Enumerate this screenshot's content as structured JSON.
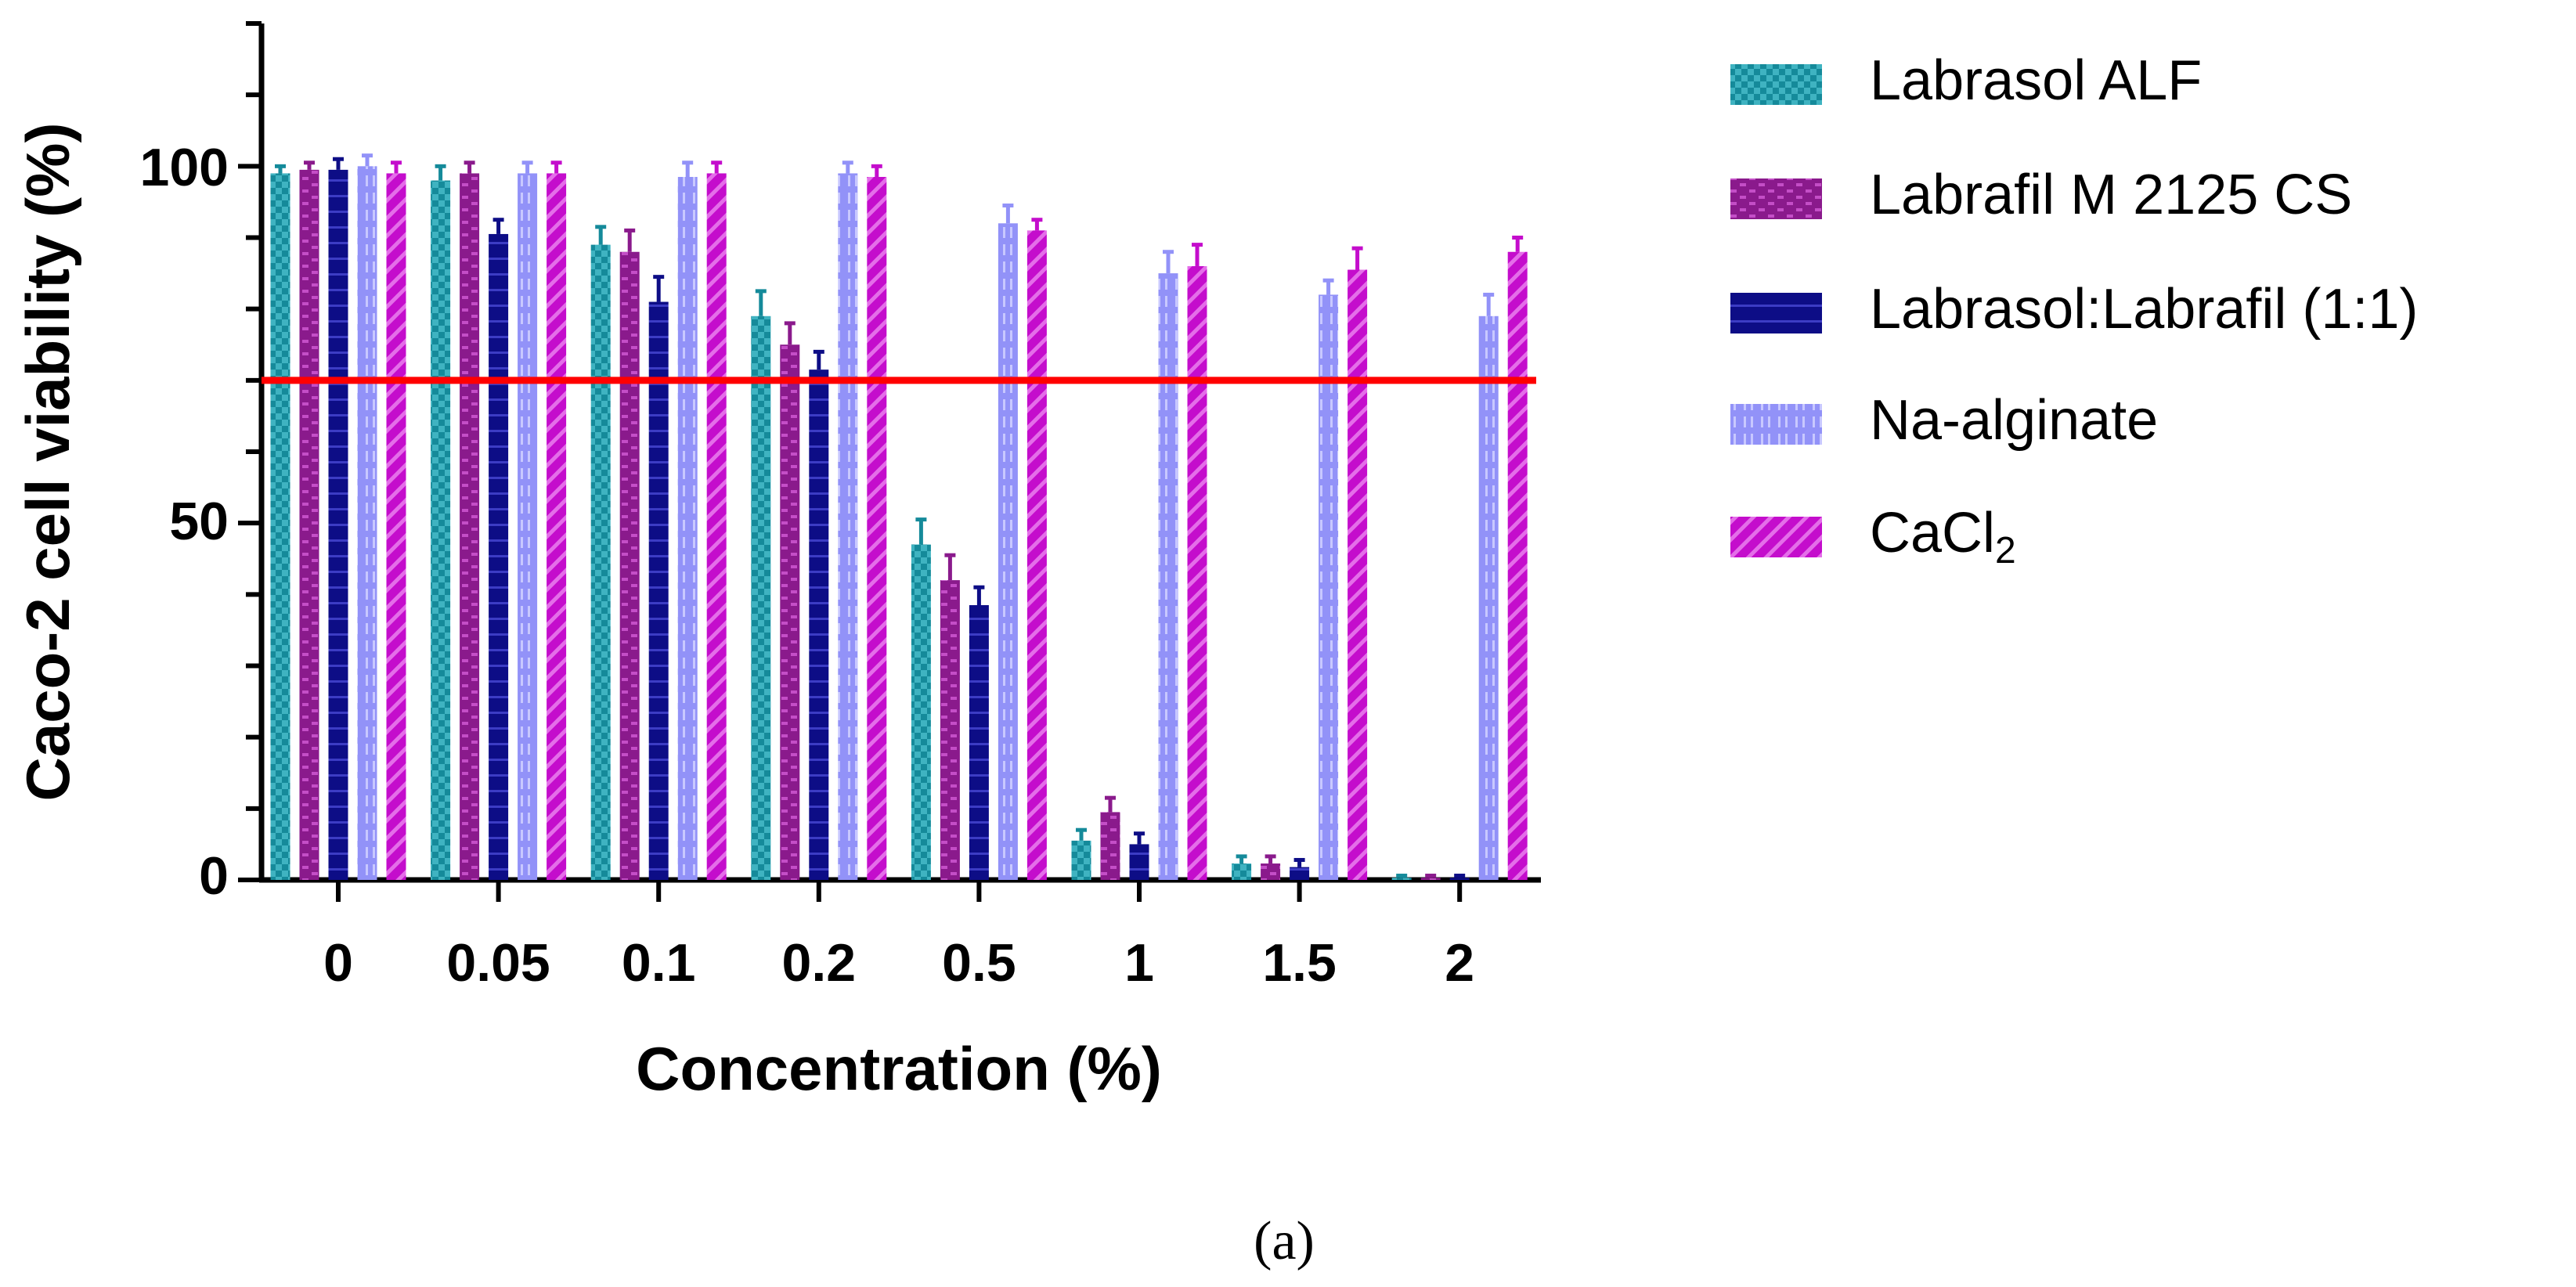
{
  "chart_data": {
    "type": "bar",
    "title": "",
    "xlabel": "Concentration (%)",
    "ylabel": "Caco-2 cell viability (%)",
    "ylim": [
      0,
      120
    ],
    "yticks": [
      0,
      50,
      100
    ],
    "categories": [
      "0",
      "0.05",
      "0.1",
      "0.2",
      "0.5",
      "1",
      "1.5",
      "2"
    ],
    "series": [
      {
        "name": "Labrasol ALF",
        "color": "#158a9a",
        "values": [
          99,
          98,
          89,
          79,
          47,
          5.5,
          2.3,
          0.3
        ],
        "errors": [
          1,
          2,
          2.5,
          3.5,
          3.5,
          1.5,
          1,
          0.3
        ]
      },
      {
        "name": "Labrafil M 2125 CS",
        "color": "#8a1a8c",
        "values": [
          99.5,
          99,
          88,
          75,
          42,
          9.5,
          2.3,
          0.3
        ],
        "errors": [
          1,
          1.5,
          3,
          3,
          3.5,
          2,
          1,
          0.3
        ]
      },
      {
        "name": "Labrasol:Labrafil (1:1)",
        "color": "#0d0d86",
        "values": [
          99.5,
          90.5,
          81,
          71.5,
          38.5,
          5,
          1.8,
          0.3
        ],
        "errors": [
          1.5,
          2,
          3.5,
          2.5,
          2.5,
          1.5,
          1,
          0.3
        ]
      },
      {
        "name": "Na-alginate",
        "color": "#9292f8",
        "values": [
          100,
          99,
          98.5,
          99,
          92,
          85,
          82,
          79
        ],
        "errors": [
          1.5,
          1.5,
          2,
          1.5,
          2.5,
          3,
          2,
          3
        ]
      },
      {
        "name": "CaCl2",
        "color": "#c40dcc",
        "values": [
          99,
          99,
          99,
          98.5,
          91,
          86,
          85.5,
          88
        ],
        "errors": [
          1.5,
          1.5,
          1.5,
          1.5,
          1.5,
          3,
          3,
          2
        ]
      }
    ],
    "threshold": {
      "value": 70,
      "color": "#ff0000"
    },
    "legend_position": "right",
    "legend_labels": {
      "labrasol": "Labrasol ALF",
      "labrafil": "Labrafil M 2125 CS",
      "mix": "Labrasol:Labrafil (1:1)",
      "alginate": "Na-alginate",
      "cacl2_base": "CaCl",
      "cacl2_sub": "2"
    },
    "caption": "(a)"
  }
}
